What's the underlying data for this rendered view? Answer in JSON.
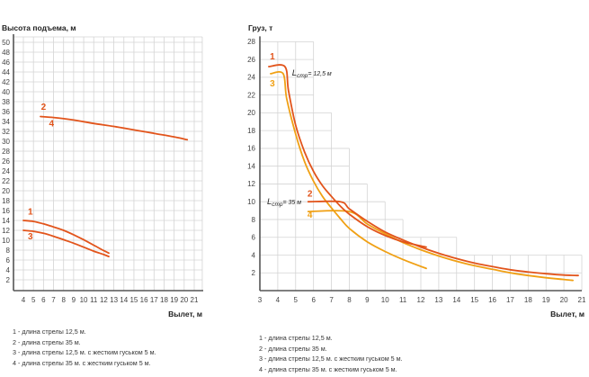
{
  "colors": {
    "series1": "#e2541b",
    "series2": "#e2541b",
    "series3": "#f0a014",
    "series4": "#f0a014",
    "line_dark": "#e2541b",
    "line_light": "#f0a014",
    "grid": "#d4d4d4",
    "axis": "#555555",
    "text": "#222222"
  },
  "chart_data": [
    {
      "type": "line",
      "title": "",
      "ylabel": "Высота подъема, м",
      "xlabel": "Вылет, м",
      "xlim": [
        3,
        21
      ],
      "ylim": [
        0,
        50
      ],
      "grid": true,
      "x_ticks": [
        "4",
        "5",
        "6",
        "7",
        "8",
        "9",
        "10",
        "11",
        "12",
        "13",
        "14",
        "15",
        "16",
        "17",
        "18",
        "19",
        "20",
        "21"
      ],
      "y_ticks": [
        "2",
        "4",
        "6",
        "8",
        "10",
        "12",
        "14",
        "16",
        "18",
        "20",
        "22",
        "24",
        "26",
        "28",
        "30",
        "32",
        "34",
        "36",
        "38",
        "40",
        "42",
        "44",
        "46",
        "48",
        "50"
      ],
      "series": [
        {
          "name": "1",
          "color_key": "series1",
          "x": [
            4,
            5,
            6,
            7,
            8,
            9,
            10,
            11,
            12,
            12.5
          ],
          "y": [
            14,
            13.8,
            13.3,
            12.7,
            12,
            11.1,
            10.1,
            9.0,
            7.9,
            7.4
          ]
        },
        {
          "name": "3",
          "color_key": "series1",
          "x": [
            4,
            5,
            6,
            7,
            8,
            9,
            10,
            11,
            12,
            12.5
          ],
          "y": [
            12,
            11.8,
            11.4,
            10.8,
            10.1,
            9.4,
            8.6,
            7.8,
            7.1,
            6.7
          ]
        },
        {
          "name": "2",
          "color_key": "series2",
          "x": [
            5.7,
            7,
            9,
            11,
            13,
            15,
            17,
            19,
            20.3
          ],
          "y": [
            35,
            34.8,
            34.3,
            33.6,
            33.0,
            32.3,
            31.6,
            30.9,
            30.3
          ]
        }
      ],
      "curve_labels": [
        {
          "text": "1",
          "x": 4.7,
          "y": 15.2
        },
        {
          "text": "3",
          "x": 4.7,
          "y": 10.2
        },
        {
          "text": "2",
          "x": 6.0,
          "y": 36.4
        },
        {
          "text": "4",
          "x": 6.8,
          "y": 33.0
        }
      ]
    },
    {
      "type": "line",
      "title": "",
      "ylabel": "Груз, т",
      "xlabel": "Вылет, м",
      "xlim": [
        3,
        21
      ],
      "ylim": [
        0,
        28
      ],
      "grid": true,
      "grid_staircase": [
        {
          "x_from": 3,
          "x_to": 6,
          "top": 28
        },
        {
          "x_from": 6,
          "x_to": 7,
          "top": 20
        },
        {
          "x_from": 7,
          "x_to": 8,
          "top": 16
        },
        {
          "x_from": 8,
          "x_to": 9,
          "top": 12
        },
        {
          "x_from": 9,
          "x_to": 10,
          "top": 10
        },
        {
          "x_from": 10,
          "x_to": 11,
          "top": 8
        },
        {
          "x_from": 11,
          "x_to": 14,
          "top": 6
        },
        {
          "x_from": 14,
          "x_to": 21,
          "top": 4
        }
      ],
      "x_ticks": [
        "3",
        "4",
        "5",
        "6",
        "7",
        "8",
        "9",
        "10",
        "11",
        "12",
        "13",
        "14",
        "15",
        "16",
        "17",
        "18",
        "19",
        "20",
        "21"
      ],
      "y_ticks": [
        "2",
        "4",
        "6",
        "8",
        "10",
        "12",
        "14",
        "16",
        "18",
        "20",
        "22",
        "24",
        "26",
        "28"
      ],
      "series": [
        {
          "name": "1",
          "color_key": "series1",
          "x": [
            3.5,
            4.4,
            4.6,
            5,
            5.5,
            6,
            6.5,
            7,
            7.5,
            8,
            9,
            10,
            11,
            12.3
          ],
          "y": [
            25.2,
            25.2,
            22.5,
            18.6,
            15.6,
            13.4,
            11.8,
            10.6,
            9.5,
            8.6,
            7.2,
            6.2,
            5.5,
            4.9
          ]
        },
        {
          "name": "3",
          "color_key": "series3",
          "x": [
            3.6,
            4.3,
            4.5,
            5,
            5.5,
            6,
            6.5,
            7,
            7.5,
            8,
            9,
            10,
            11,
            12.3
          ],
          "y": [
            24.4,
            24.4,
            21.6,
            17.6,
            14.5,
            12.3,
            10.6,
            9.3,
            8.1,
            7.0,
            5.5,
            4.4,
            3.5,
            2.5
          ]
        },
        {
          "name": "2",
          "color_key": "series2",
          "x": [
            5.7,
            7.5,
            8,
            9,
            10,
            11,
            12,
            13,
            14,
            15,
            16,
            17,
            18,
            19,
            20,
            20.8
          ],
          "y": [
            10,
            10,
            9.2,
            7.8,
            6.6,
            5.7,
            4.9,
            4.2,
            3.6,
            3.1,
            2.7,
            2.35,
            2.1,
            1.9,
            1.75,
            1.7
          ]
        },
        {
          "name": "4",
          "color_key": "series4",
          "x": [
            5.7,
            8,
            9,
            10,
            11,
            12,
            13,
            14,
            15,
            16,
            17,
            18,
            19,
            20,
            20.5
          ],
          "y": [
            8.9,
            8.9,
            7.5,
            6.4,
            5.4,
            4.6,
            3.9,
            3.3,
            2.8,
            2.4,
            2.0,
            1.7,
            1.45,
            1.25,
            1.15
          ]
        }
      ],
      "curve_labels": [
        {
          "text": "1",
          "x": 3.7,
          "y": 26.0,
          "color_key": "series1"
        },
        {
          "text": "3",
          "x": 3.7,
          "y": 23.0,
          "color_key": "series3"
        },
        {
          "text": "2",
          "x": 5.8,
          "y": 10.6,
          "color_key": "series2"
        },
        {
          "text": "4",
          "x": 5.8,
          "y": 8.2,
          "color_key": "series4"
        }
      ],
      "annotations": [
        {
          "main": "L",
          "sub": "стр",
          "rest": "= 12,5 м",
          "x": 4.8,
          "y": 24.2
        },
        {
          "main": "L",
          "sub": "стр",
          "rest": "= 35 м",
          "x": 3.4,
          "y": 9.7
        }
      ]
    }
  ],
  "legend_left": [
    "1 - длина стрелы 12,5 м.",
    "2 - длина стрелы 35 м.",
    "3 - длина стрелы 12,5 м. с жестким гуськом 5 м.",
    "4 - длина стрелы 35 м. с жестким гуськом 5 м."
  ],
  "legend_right": [
    "1 - длина стрелы 12,5 м.",
    "2 - длина стрелы 35 м.",
    "3 - длина стрелы 12,5 м. с жестким гуськом 5 м.",
    "4 - длина стрелы 35 м. с жестким гуськом 5 м."
  ]
}
